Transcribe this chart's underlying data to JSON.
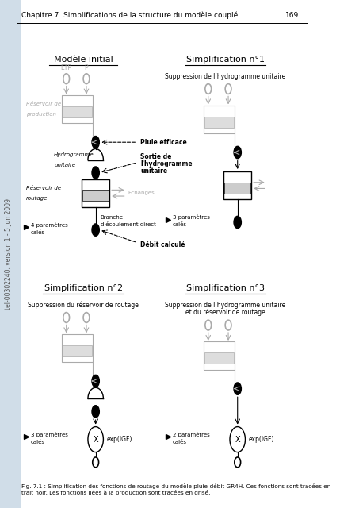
{
  "page_header": "Chapitre 7. Simplifications de la structure du modèle couplé",
  "page_number": "169",
  "fig_caption": "Fig. 7.1 : Simplification des fonctions de routage du modèle pluie-débit GR4H. Ces fonctions sont tracées en\ntrait noir. Les fonctions liées à la production sont tracées en grisé.",
  "sidebar_text": "tel-00302240, version 1 - 5 Jun 2009",
  "background_color": "#ffffff",
  "sidebar_color": "#d0dde8",
  "gray_color": "#aaaaaa",
  "black_color": "#000000"
}
